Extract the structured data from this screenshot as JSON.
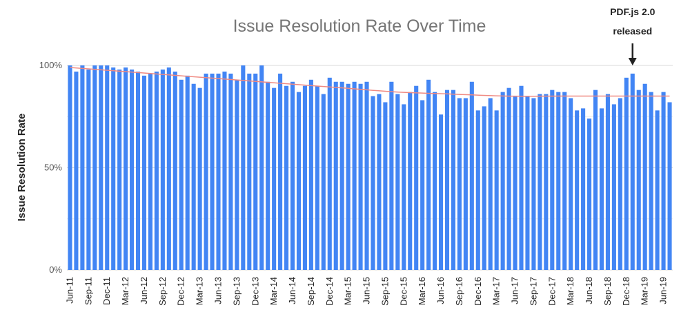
{
  "chart_data": {
    "type": "bar",
    "title": "Issue Resolution Rate Over Time",
    "xlabel": "",
    "ylabel": "Issue Resolution Rate",
    "ylim": [
      0,
      100
    ],
    "yticks": [
      "0%",
      "50%",
      "100%"
    ],
    "ytick_values": [
      0,
      50,
      100
    ],
    "grid": true,
    "bar_color": "#4285f4",
    "trend_color": "#f08a82",
    "start_month": "Jun-11",
    "xtick_labels": [
      "Jun-11",
      "Sep-11",
      "Dec-11",
      "Mar-12",
      "Jun-12",
      "Sep-12",
      "Dec-12",
      "Mar-13",
      "Jun-13",
      "Sep-13",
      "Dec-13",
      "Mar-14",
      "Jun-14",
      "Sep-14",
      "Dec-14",
      "Mar-15",
      "Jun-15",
      "Sep-15",
      "Dec-15",
      "Mar-16",
      "Jun-16",
      "Sep-16",
      "Dec-16",
      "Mar-17",
      "Jun-17",
      "Sep-17",
      "Dec-17",
      "Mar-18",
      "Jun-18",
      "Sep-18",
      "Dec-18",
      "Mar-19",
      "Jun-19"
    ],
    "values": [
      100,
      97,
      100,
      98,
      100,
      100,
      100,
      99,
      98,
      99,
      98,
      97,
      95,
      96,
      97,
      98,
      99,
      97,
      93,
      95,
      91,
      89,
      96,
      96,
      96,
      97,
      96,
      93,
      100,
      96,
      96,
      100,
      92,
      89,
      96,
      90,
      92,
      87,
      90,
      93,
      90,
      86,
      94,
      92,
      92,
      91,
      92,
      91,
      92,
      85,
      86,
      82,
      92,
      86,
      81,
      87,
      90,
      83,
      93,
      87,
      76,
      88,
      88,
      84,
      84,
      92,
      78,
      80,
      84,
      78,
      87,
      89,
      85,
      90,
      85,
      84,
      86,
      86,
      88,
      87,
      87,
      84,
      78,
      79,
      74,
      88,
      79,
      86,
      81,
      84,
      94,
      96,
      88,
      91,
      87,
      78,
      87,
      82
    ],
    "trend": [
      99,
      97,
      95,
      93,
      91,
      89,
      87,
      86,
      85,
      85,
      85,
      85
    ],
    "annotation": {
      "text_line1": "PDF.js 2.0",
      "text_line2": "released",
      "index": 91
    }
  }
}
